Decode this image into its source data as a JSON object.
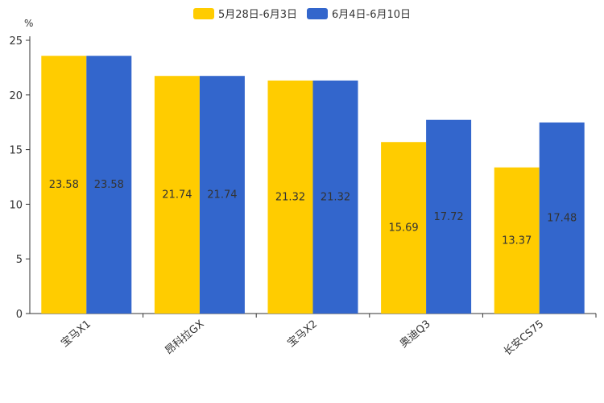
{
  "chart_data": {
    "type": "bar",
    "title": "",
    "xlabel": "",
    "ylabel": "%",
    "ylim": [
      0,
      25
    ],
    "yticks": [
      0,
      5,
      10,
      15,
      20,
      25
    ],
    "categories": [
      "宝马X1",
      "昂科拉GX",
      "宝马X2",
      "奥迪Q3",
      "长安CS75"
    ],
    "series": [
      {
        "name": "5月28日-6月3日",
        "color": "#FFCC00",
        "values": [
          23.58,
          21.74,
          21.32,
          15.69,
          13.37
        ]
      },
      {
        "name": "6月4日-6月10日",
        "color": "#3366CC",
        "values": [
          23.58,
          21.74,
          21.32,
          17.72,
          17.48
        ]
      }
    ],
    "legend_position": "top-center",
    "grid": false
  }
}
